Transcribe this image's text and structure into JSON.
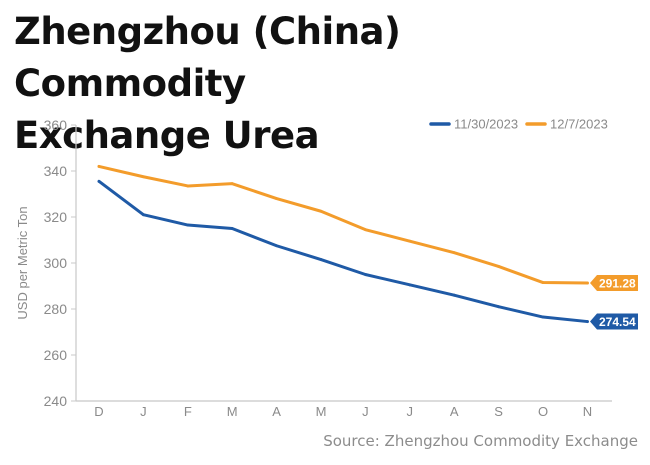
{
  "title_lines": [
    "Zhengzhou (China) Commodity",
    "Exchange Urea"
  ],
  "source": "Source: Zhengzhou Commodity Exchange",
  "chart_data": {
    "type": "line",
    "categories": [
      "D",
      "J",
      "F",
      "M",
      "A",
      "M",
      "J",
      "J",
      "A",
      "S",
      "O",
      "N"
    ],
    "ylabel": "USD per Metric Ton",
    "ylim": [
      240,
      360
    ],
    "yticks": [
      240,
      260,
      280,
      300,
      320,
      340,
      360
    ],
    "grid": false,
    "legend": "top-right",
    "series": [
      {
        "name": "11/30/2023",
        "color": "#1f5aa6",
        "values": [
          335.5,
          321,
          316.5,
          315,
          307.5,
          301.5,
          295,
          290.5,
          286,
          281,
          276.5,
          274.54
        ],
        "end_label": "274.54"
      },
      {
        "name": "12/7/2023",
        "color": "#f39c2b",
        "values": [
          342,
          337.5,
          333.5,
          334.5,
          328,
          322.5,
          314.5,
          309.5,
          304.5,
          298.5,
          291.5,
          291.28
        ],
        "end_label": "291.28"
      }
    ]
  }
}
